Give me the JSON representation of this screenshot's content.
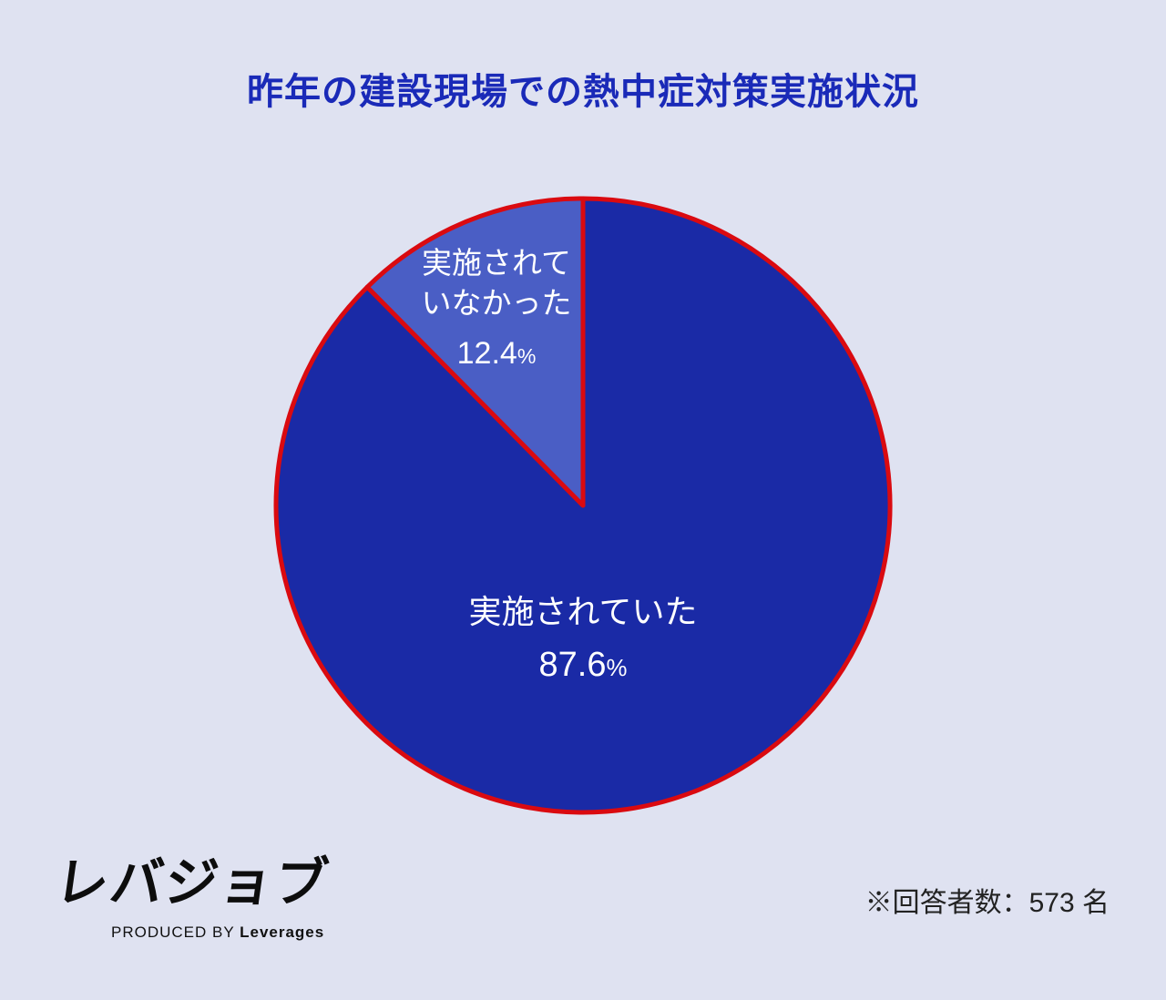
{
  "title": "昨年の建設現場での熱中症対策実施状況",
  "chart_data": {
    "type": "pie",
    "title": "昨年の建設現場での熱中症対策実施状況",
    "categories": [
      "実施されていた",
      "実施されていなかった"
    ],
    "values": [
      87.6,
      12.4
    ],
    "unit": "%",
    "start_angle_deg": 0,
    "direction": "clockwise",
    "slices": [
      {
        "label": "実施されていた",
        "value": 87.6,
        "unit": "%",
        "color": "#1a2aa6"
      },
      {
        "label": "実施されていなかった",
        "value": 12.4,
        "unit": "%",
        "color": "#4a5ec5"
      }
    ],
    "stroke_color": "#da0a10",
    "note": "※回答者数：573 名"
  },
  "labels": {
    "major": {
      "line1": "実施されていた",
      "value": "87.6",
      "unit": "%"
    },
    "minor": {
      "line1": "実施されて",
      "line2": "いなかった",
      "value": "12.4",
      "unit": "%"
    }
  },
  "footer": {
    "logo_text": "レバジョブ",
    "logo_sub_prefix": "PRODUCED BY ",
    "logo_sub_brand": "Leverages",
    "note": "※回答者数：573 名"
  },
  "colors": {
    "background": "#dfe2f1",
    "title": "#1a2ab8",
    "slice_major": "#1a2aa6",
    "slice_minor": "#4a5ec5",
    "slice_stroke": "#da0a10",
    "pie_text": "#ffffff",
    "note_text": "#222222",
    "logo_text": "#0d0d0d"
  }
}
